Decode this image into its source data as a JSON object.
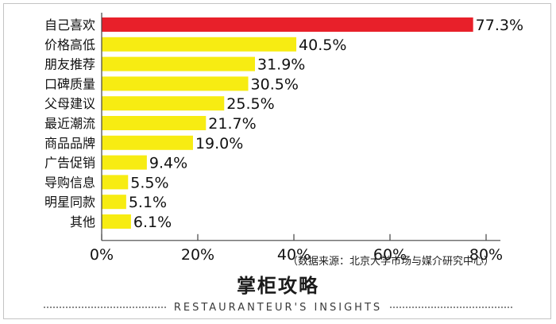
{
  "chart_data": {
    "type": "bar",
    "orientation": "horizontal",
    "categories": [
      "自己喜欢",
      "价格高低",
      "朋友推荐",
      "口碑质量",
      "父母建议",
      "最近潮流",
      "商品品牌",
      "广告促销",
      "导购信息",
      "明星同款",
      "其他"
    ],
    "values": [
      77.3,
      40.5,
      31.9,
      30.5,
      25.5,
      21.7,
      19.0,
      9.4,
      5.5,
      5.1,
      6.1
    ],
    "value_labels": [
      "77.3%",
      "40.5%",
      "31.9%",
      "30.5%",
      "25.5%",
      "21.7%",
      "19.0%",
      "9.4%",
      "5.5%",
      "5.1%",
      "6.1%"
    ],
    "xlim": [
      0,
      80
    ],
    "x_ticks": [
      "0%",
      "20%",
      "40%",
      "60%",
      "80%"
    ],
    "grid": false,
    "colors": {
      "highlight": "#e8202a",
      "default": "#f7ec12"
    }
  },
  "source_note": "（数据来源：北京大学市场与媒介研究中心）",
  "brand": {
    "title": "掌柜攻略",
    "subtitle": "RESTAURANTEUR'S INSIGHTS"
  }
}
